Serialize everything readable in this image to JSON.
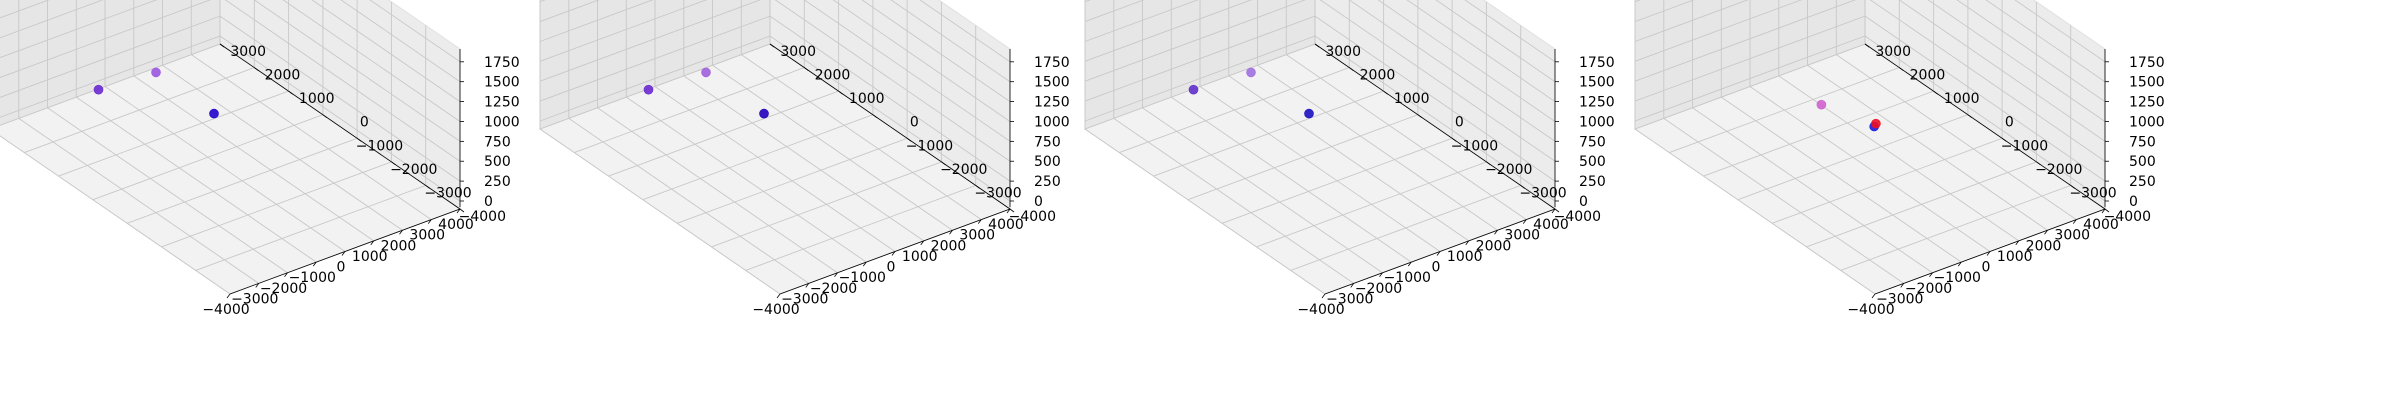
{
  "chart_data": [
    {
      "type": "scatter3d",
      "xlim": [
        -4000,
        4000
      ],
      "ylim": [
        -4000,
        3000
      ],
      "zlim": [
        0,
        1750
      ],
      "x_ticks": [
        "−4000",
        "−3000",
        "−2000",
        "−1000",
        "0",
        "1000",
        "2000",
        "3000",
        "4000"
      ],
      "y_ticks": [
        "−4000",
        "−3000",
        "−2000",
        "−1000",
        "0",
        "1000",
        "2000",
        "3000"
      ],
      "z_ticks": [
        "0",
        "250",
        "500",
        "750",
        "1000",
        "1250",
        "1500",
        "1750"
      ],
      "grid": true,
      "points": [
        {
          "x": -1300,
          "y": 2100,
          "z": 300,
          "color": "#6a2ad0"
        },
        {
          "x": 700,
          "y": 2100,
          "z": 250,
          "color": "#9a55e0"
        },
        {
          "x": 1050,
          "y": 700,
          "z": 100,
          "color": "#2200cc"
        }
      ]
    },
    {
      "type": "scatter3d",
      "xlim": [
        -4000,
        4000
      ],
      "ylim": [
        -4000,
        3000
      ],
      "zlim": [
        0,
        1750
      ],
      "x_ticks": [
        "−4000",
        "−3000",
        "−2000",
        "−1000",
        "0",
        "1000",
        "2000",
        "3000",
        "4000"
      ],
      "y_ticks": [
        "−4000",
        "−3000",
        "−2000",
        "−1000",
        "0",
        "1000",
        "2000",
        "3000"
      ],
      "z_ticks": [
        "0",
        "250",
        "500",
        "750",
        "1000",
        "1250",
        "1500",
        "1750"
      ],
      "grid": true,
      "points": [
        {
          "x": -1300,
          "y": 2100,
          "z": 300,
          "color": "#6a2ad0"
        },
        {
          "x": 700,
          "y": 2100,
          "z": 250,
          "color": "#a060dd"
        },
        {
          "x": 1050,
          "y": 700,
          "z": 100,
          "color": "#2200bb"
        }
      ]
    },
    {
      "type": "scatter3d",
      "xlim": [
        -4000,
        4000
      ],
      "ylim": [
        -4000,
        3000
      ],
      "zlim": [
        0,
        1750
      ],
      "x_ticks": [
        "−4000",
        "−3000",
        "−2000",
        "−1000",
        "0",
        "1000",
        "2000",
        "3000",
        "4000"
      ],
      "y_ticks": [
        "−4000",
        "−3000",
        "−2000",
        "−1000",
        "0",
        "1000",
        "2000",
        "3000"
      ],
      "z_ticks": [
        "0",
        "250",
        "500",
        "750",
        "1000",
        "1250",
        "1500",
        "1750"
      ],
      "grid": true,
      "points": [
        {
          "x": -1300,
          "y": 2100,
          "z": 300,
          "color": "#6030cc"
        },
        {
          "x": 700,
          "y": 2100,
          "z": 250,
          "color": "#a070e0"
        },
        {
          "x": 1050,
          "y": 700,
          "z": 100,
          "color": "#1a10c0"
        }
      ]
    },
    {
      "type": "scatter3d",
      "xlim": [
        -4000,
        4000
      ],
      "ylim": [
        -4000,
        3000
      ],
      "zlim": [
        0,
        1750
      ],
      "x_ticks": [
        "−4000",
        "−3000",
        "−2000",
        "−1000",
        "0",
        "1000",
        "2000",
        "3000",
        "4000"
      ],
      "y_ticks": [
        "−4000",
        "−3000",
        "−2000",
        "−1000",
        "0",
        "1000",
        "2000",
        "3000"
      ],
      "z_ticks": [
        "0",
        "250",
        "500",
        "750",
        "1000",
        "1250",
        "1500",
        "1750"
      ],
      "grid": true,
      "points": [
        {
          "x": 100,
          "y": 1000,
          "z": 250,
          "color": "#d060d0"
        },
        {
          "x": 1100,
          "y": 300,
          "z": 50,
          "color": "#1a1ae0"
        },
        {
          "x": 1100,
          "y": 250,
          "z": 100,
          "color": "#ee1020"
        }
      ]
    }
  ]
}
